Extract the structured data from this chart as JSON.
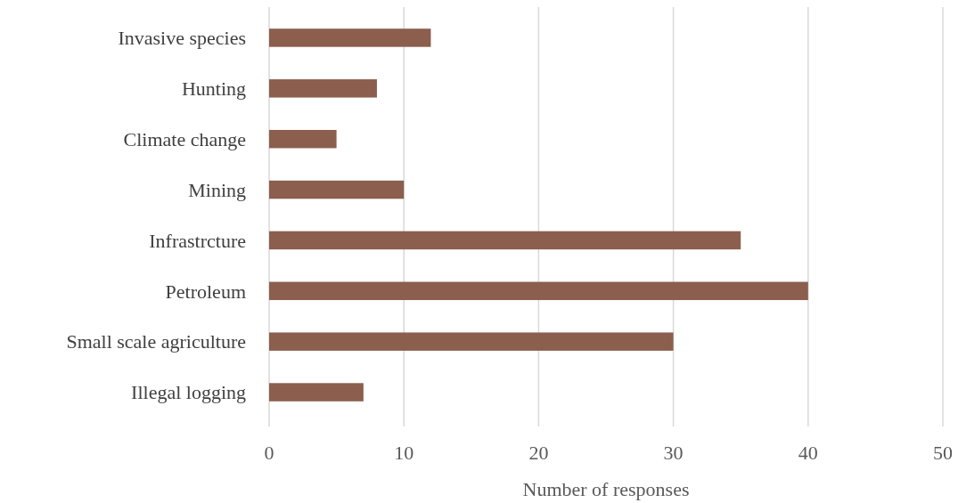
{
  "chart_data": {
    "type": "bar",
    "orientation": "horizontal",
    "categories": [
      "Invasive species",
      "Hunting",
      "Climate change",
      "Mining",
      "Infrastrcture",
      "Petroleum",
      "Small scale agriculture",
      "Illegal logging"
    ],
    "values": [
      12,
      8,
      5,
      10,
      35,
      40,
      30,
      7
    ],
    "color": "#8b5e4e",
    "xlabel": "Number of responses",
    "xlim": [
      0,
      50
    ],
    "xticks": [
      0,
      10,
      20,
      30,
      40,
      50
    ],
    "grid": "x"
  }
}
